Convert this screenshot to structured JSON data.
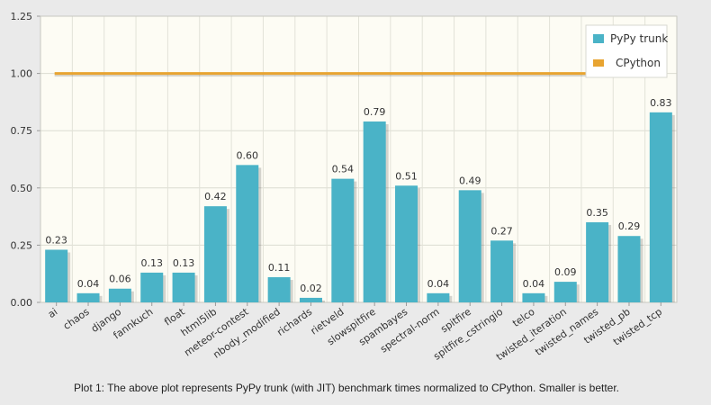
{
  "chart_data": {
    "type": "bar",
    "categories": [
      "ai",
      "chaos",
      "django",
      "fannkuch",
      "float",
      "html5lib",
      "meteor-contest",
      "nbody_modified",
      "richards",
      "rietveld",
      "slowspitfire",
      "spambayes",
      "spectral-norm",
      "spitfire",
      "spitfire_cstringio",
      "telco",
      "twisted_iteration",
      "twisted_names",
      "twisted_pb",
      "twisted_tcp"
    ],
    "series": [
      {
        "name": "PyPy trunk",
        "type": "bar",
        "color": "#4ab3c7",
        "values": [
          0.23,
          0.04,
          0.06,
          0.13,
          0.13,
          0.42,
          0.6,
          0.11,
          0.02,
          0.54,
          0.79,
          0.51,
          0.04,
          0.49,
          0.27,
          0.04,
          0.09,
          0.35,
          0.29,
          0.83
        ],
        "labels": [
          "0.23",
          "0.04",
          "0.06",
          "0.13",
          "0.13",
          "0.42",
          "0.60",
          "0.11",
          "0.02",
          "0.54",
          "0.79",
          "0.51",
          "0.04",
          "0.49",
          "0.27",
          "0.04",
          "0.09",
          "0.35",
          "0.29",
          "0.83"
        ]
      },
      {
        "name": "CPython",
        "type": "line",
        "color": "#e8a431",
        "value": 1.0
      }
    ],
    "yticks": [
      "0.00",
      "0.25",
      "0.50",
      "0.75",
      "1.00",
      "1.25"
    ],
    "ylim": [
      0,
      1.25
    ],
    "grid": true,
    "legend_position": "top-right"
  },
  "caption": "Plot 1: The above plot represents PyPy trunk (with JIT) benchmark times normalized to CPython. Smaller is better."
}
